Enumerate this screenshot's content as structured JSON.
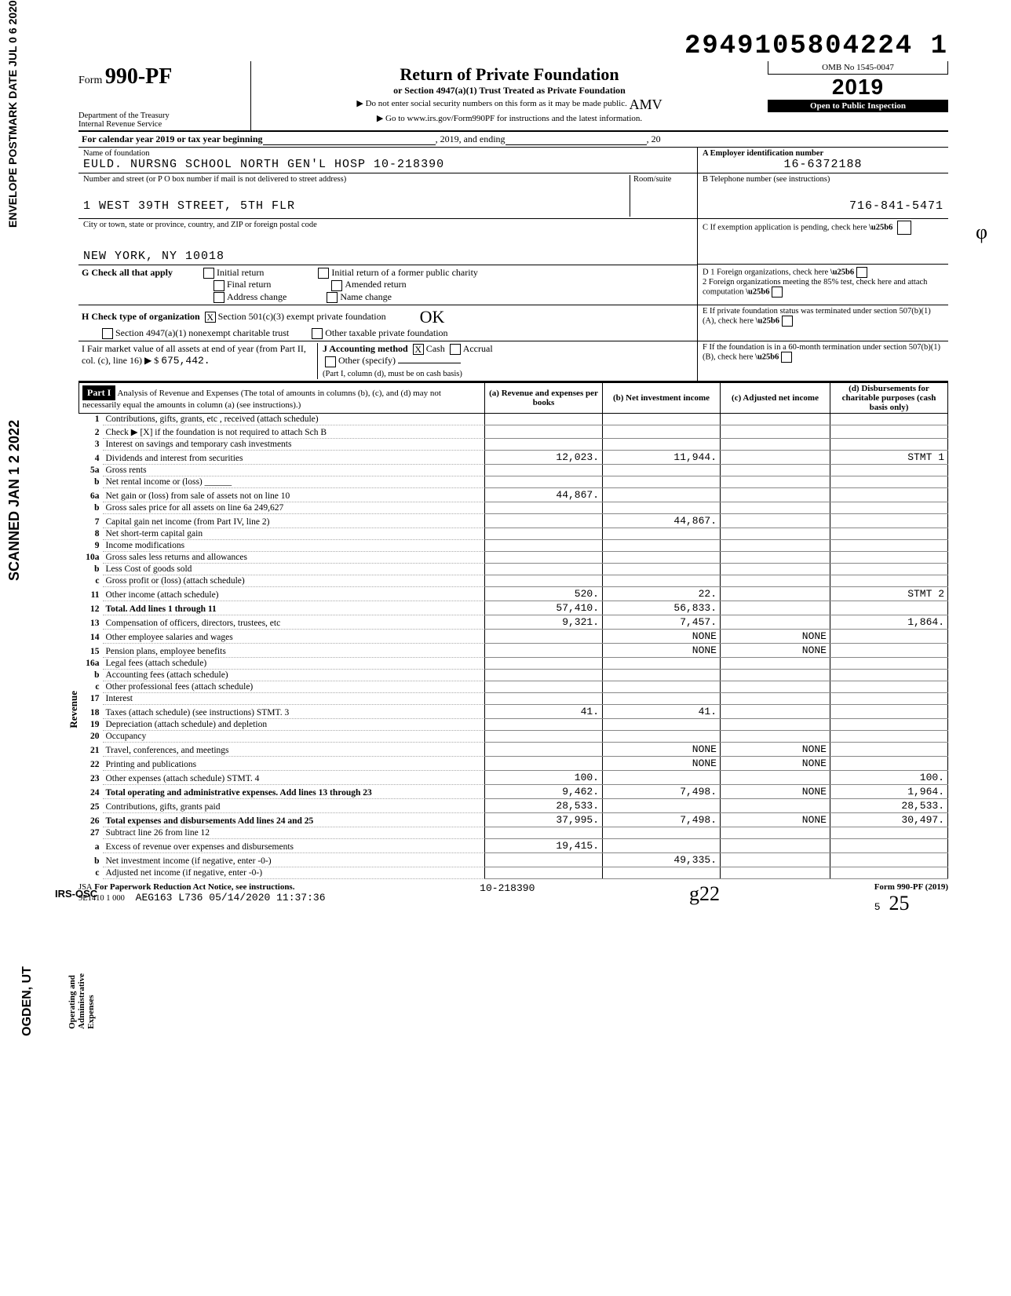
{
  "dln": "2949105804224 1",
  "postmark_stamp": "ENVELOPE\nPOSTMARK DATE JUL 0 6 2020",
  "scanned_stamp": "SCANNED JAN 1 2 2022",
  "ogden_stamp": "OGDEN, UT",
  "irs_stamp": "IRS-OSC",
  "hand_initial_top": "φ",
  "hand_initial_mid": "0̴",
  "hand_sig": "g22",
  "hand_bottom_right": "25",
  "header": {
    "form_label": "Form",
    "form_number": "990-PF",
    "dept": "Department of the Treasury\nInternal Revenue Service",
    "title": "Return of Private Foundation",
    "subtitle": "or Section 4947(a)(1) Trust Treated as Private Foundation",
    "warn1": "▶ Do not enter social security numbers on this form as it may be made public.",
    "warn2": "▶ Go to www.irs.gov/Form990PF for instructions and the latest information.",
    "hand_amv": "AMV",
    "omb": "OMB No 1545-0047",
    "year": "2019",
    "open": "Open to Public Inspection"
  },
  "cal_line": {
    "prefix": "For calendar year 2019 or tax year beginning",
    "mid": ", 2019, and ending",
    "suffix": ", 20"
  },
  "id": {
    "name_label": "Name of foundation",
    "name": "EULD. NURSNG SCHOOL NORTH GEN'L HOSP 10-218390",
    "addr_label": "Number and street (or P O box number if mail is not delivered to street address)",
    "addr": "1 WEST 39TH STREET, 5TH FLR",
    "room_label": "Room/suite",
    "city_label": "City or town, state or province, country, and ZIP or foreign postal code",
    "city": "NEW YORK, NY 10018",
    "ein_label": "A  Employer identification number",
    "ein": "16-6372188",
    "tel_label": "B  Telephone number (see instructions)",
    "tel": "716-841-5471",
    "c_label": "C  If exemption application is pending, check here",
    "d1": "D  1  Foreign organizations, check here",
    "d2": "2  Foreign organizations meeting the 85% test, check here and attach computation",
    "e": "E  If private foundation status was terminated under section 507(b)(1)(A), check here",
    "f": "F  If the foundation is in a 60-month termination under section 507(b)(1)(B), check here"
  },
  "g": {
    "label": "G Check all that apply",
    "opts": [
      "Initial return",
      "Final return",
      "Address change",
      "Initial return of a former public charity",
      "Amended return",
      "Name change"
    ]
  },
  "h": {
    "label": "H Check type of organization",
    "opt1": "Section 501(c)(3) exempt private foundation",
    "opt1_checked": "X",
    "opt2": "Section 4947(a)(1) nonexempt charitable trust",
    "opt3": "Other taxable private foundation"
  },
  "i": {
    "label_left": "I  Fair market value of all assets at end of year (from Part II, col. (c), line 16) ▶ $",
    "value": "675,442.",
    "j_label": "J Accounting method",
    "j_cash": "Cash",
    "j_cash_checked": "X",
    "j_accrual": "Accrual",
    "j_other": "Other (specify)",
    "j_note": "(Part I, column (d), must be on cash basis)"
  },
  "part1": {
    "hdr": "Part I",
    "title": "Analysis of Revenue and Expenses (The total of amounts in columns (b), (c), and (d) may not necessarily equal the amounts in column (a) (see instructions).)",
    "cols": {
      "a": "(a) Revenue and expenses per books",
      "b": "(b) Net investment income",
      "c": "(c) Adjusted net income",
      "d": "(d) Disbursements for charitable purposes (cash basis only)"
    },
    "side_rev": "Revenue",
    "side_exp": "Operating and Administrative Expenses",
    "rows": [
      {
        "n": "1",
        "d": "Contributions, gifts, grants, etc , received (attach schedule)"
      },
      {
        "n": "2",
        "d": "Check ▶ [X] if the foundation is not required to attach Sch B"
      },
      {
        "n": "3",
        "d": "Interest on savings and temporary cash investments"
      },
      {
        "n": "4",
        "d": "Dividends and interest from securities",
        "a": "12,023.",
        "b": "11,944.",
        "dcol": "STMT 1"
      },
      {
        "n": "5a",
        "d": "Gross rents"
      },
      {
        "n": "b",
        "d": "Net rental income or (loss) ______"
      },
      {
        "n": "6a",
        "d": "Net gain or (loss) from sale of assets not on line 10",
        "a": "44,867."
      },
      {
        "n": "b",
        "d": "Gross sales price for all assets on line 6a   249,627"
      },
      {
        "n": "7",
        "d": "Capital gain net income (from Part IV, line 2)",
        "b": "44,867."
      },
      {
        "n": "8",
        "d": "Net short-term capital gain"
      },
      {
        "n": "9",
        "d": "Income modifications"
      },
      {
        "n": "10a",
        "d": "Gross sales less returns and allowances"
      },
      {
        "n": "b",
        "d": "Less Cost of goods sold"
      },
      {
        "n": "c",
        "d": "Gross profit or (loss) (attach schedule)"
      },
      {
        "n": "11",
        "d": "Other income (attach schedule)",
        "a": "520.",
        "b": "22.",
        "dcol": "STMT 2"
      },
      {
        "n": "12",
        "d": "Total. Add lines 1 through 11",
        "a": "57,410.",
        "b": "56,833.",
        "bold": true
      },
      {
        "n": "13",
        "d": "Compensation of officers, directors, trustees, etc",
        "a": "9,321.",
        "b": "7,457.",
        "dcol": "1,864."
      },
      {
        "n": "14",
        "d": "Other employee salaries and wages",
        "b": "NONE",
        "c": "NONE"
      },
      {
        "n": "15",
        "d": "Pension plans, employee benefits",
        "b": "NONE",
        "c": "NONE"
      },
      {
        "n": "16a",
        "d": "Legal fees (attach schedule)"
      },
      {
        "n": "b",
        "d": "Accounting fees (attach schedule)"
      },
      {
        "n": "c",
        "d": "Other professional fees (attach schedule)"
      },
      {
        "n": "17",
        "d": "Interest"
      },
      {
        "n": "18",
        "d": "Taxes (attach schedule) (see instructions) STMT. 3",
        "a": "41.",
        "b": "41."
      },
      {
        "n": "19",
        "d": "Depreciation (attach schedule) and depletion"
      },
      {
        "n": "20",
        "d": "Occupancy"
      },
      {
        "n": "21",
        "d": "Travel, conferences, and meetings",
        "b": "NONE",
        "c": "NONE"
      },
      {
        "n": "22",
        "d": "Printing and publications",
        "b": "NONE",
        "c": "NONE"
      },
      {
        "n": "23",
        "d": "Other expenses (attach schedule) STMT. 4",
        "a": "100.",
        "dcol": "100."
      },
      {
        "n": "24",
        "d": "Total operating and administrative expenses. Add lines 13 through 23",
        "a": "9,462.",
        "b": "7,498.",
        "c": "NONE",
        "dcol": "1,964.",
        "bold": true
      },
      {
        "n": "25",
        "d": "Contributions, gifts, grants paid",
        "a": "28,533.",
        "dcol": "28,533."
      },
      {
        "n": "26",
        "d": "Total expenses and disbursements Add lines 24 and 25",
        "a": "37,995.",
        "b": "7,498.",
        "c": "NONE",
        "dcol": "30,497.",
        "bold": true
      },
      {
        "n": "27",
        "d": "Subtract line 26 from line 12"
      },
      {
        "n": "a",
        "d": "Excess of revenue over expenses and disbursements",
        "a": "19,415."
      },
      {
        "n": "b",
        "d": "Net investment income (if negative, enter -0-)",
        "b": "49,335."
      },
      {
        "n": "c",
        "d": "Adjusted net income (if negative, enter -0-)"
      }
    ]
  },
  "footer": {
    "jsa": "JSA",
    "pra": "For Paperwork Reduction Act Notice, see instructions.",
    "code": "9E1410 1 000",
    "batch": "AEG163 L736 05/14/2020 11:37:36",
    "cli": "10-218390",
    "pg": "5",
    "form": "Form 990-PF (2019)"
  }
}
